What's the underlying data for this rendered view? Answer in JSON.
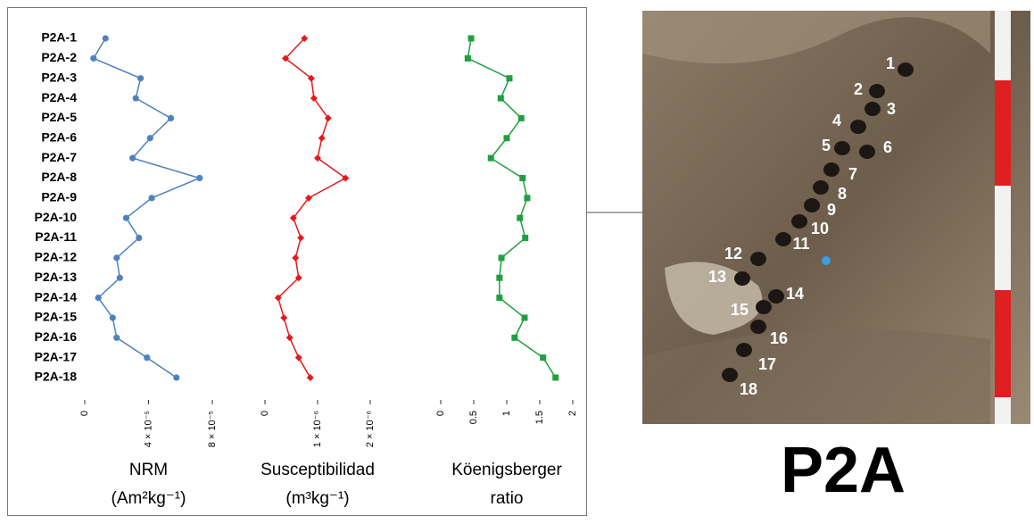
{
  "chart_data": [
    {
      "type": "line",
      "categories": [
        "P2A-1",
        "P2A-2",
        "P2A-3",
        "P2A-4",
        "P2A-5",
        "P2A-6",
        "P2A-7",
        "P2A-8",
        "P2A-9",
        "P2A-10",
        "P2A-11",
        "P2A-12",
        "P2A-13",
        "P2A-14",
        "P2A-15",
        "P2A-16",
        "P2A-17",
        "P2A-18"
      ],
      "values": [
        1.3e-05,
        5.5e-06,
        3.5e-05,
        3.2e-05,
        5.4e-05,
        4.1e-05,
        3e-05,
        7.2e-05,
        4.2e-05,
        2.6e-05,
        3.4e-05,
        2e-05,
        2.2e-05,
        8.5e-06,
        1.75e-05,
        2e-05,
        3.9e-05,
        5.75e-05
      ],
      "color": "#4f81bd",
      "marker": "circle",
      "xlim": [
        0,
        8e-05
      ],
      "xticks": [
        0,
        {
          "value": 4e-05,
          "label": "4 × 10⁻⁵"
        },
        {
          "value": 8e-05,
          "label": "8 × 10⁻⁵"
        }
      ],
      "xlabel": [
        "NRM",
        "(Am²kg⁻¹)"
      ]
    },
    {
      "type": "line",
      "values": [
        7.5e-07,
        3.9e-07,
        8.8e-07,
        9.3e-07,
        1.2e-06,
        1.08e-06,
        1e-06,
        1.53e-06,
        8.3e-07,
        5.4e-07,
        6.8e-07,
        5.8e-07,
        6.4e-07,
        2.5e-07,
        3.6e-07,
        4.7e-07,
        6.4e-07,
        8.6e-07
      ],
      "color": "#e31a1c",
      "marker": "diamond",
      "xlim": [
        0,
        2e-06
      ],
      "xticks": [
        0,
        {
          "value": 1e-06,
          "label": "1 × 10⁻⁶"
        },
        {
          "value": 2e-06,
          "label": "2 × 10⁻⁶"
        }
      ],
      "xlabel": [
        "Susceptibilidad",
        "(m³kg⁻¹)"
      ]
    },
    {
      "type": "line",
      "values": [
        0.46,
        0.41,
        1.04,
        0.91,
        1.22,
        1.0,
        0.76,
        1.24,
        1.31,
        1.2,
        1.28,
        0.92,
        0.89,
        0.89,
        1.27,
        1.12,
        1.55,
        1.74
      ],
      "color": "#1fa040",
      "marker": "square",
      "xlim": [
        0,
        2
      ],
      "xticks": [
        0,
        0.5,
        1,
        1.5,
        2
      ],
      "xlabel": [
        "Köenigsberger",
        "ratio"
      ]
    }
  ],
  "photo": {
    "hole_labels": [
      "1",
      "2",
      "3",
      "4",
      "5",
      "6",
      "7",
      "8",
      "9",
      "10",
      "11",
      "12",
      "13",
      "14",
      "15",
      "16",
      "17",
      "18"
    ],
    "caption": "P2A"
  }
}
